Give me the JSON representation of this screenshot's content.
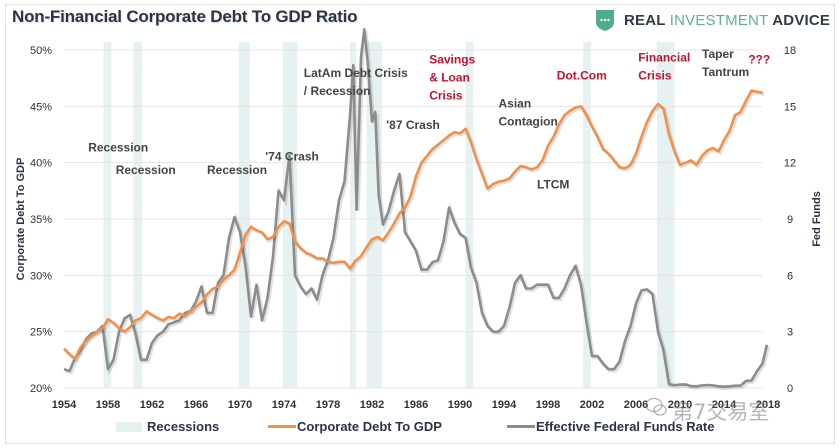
{
  "header": {
    "title": "Non-Financial Corporate Debt To GDP Ratio",
    "brand": {
      "part1": "REAL",
      "part2": "INVESTMENT",
      "part3": "ADVICE",
      "accent": "#57b391",
      "shield_color": "#4fae8a"
    }
  },
  "watermark": {
    "text": "第7交易室"
  },
  "chart_data": {
    "type": "line",
    "title": "Non-Financial Corporate Debt To GDP Ratio",
    "xlabel": "",
    "ylabel": "Corporate Debt To GDP",
    "y2label": "Fed Funds",
    "xlim": [
      1954,
      2017.5
    ],
    "ylim": [
      20,
      50
    ],
    "y2lim": [
      0,
      18
    ],
    "x_ticks": [
      "1954",
      "1958",
      "1962",
      "1966",
      "1970",
      "1974",
      "1978",
      "1982",
      "1986",
      "1990",
      "1994",
      "1998",
      "2002",
      "2006",
      "2010",
      "2014",
      "2018"
    ],
    "y_ticks": [
      "20%",
      "25%",
      "30%",
      "35%",
      "40%",
      "45%",
      "50%"
    ],
    "y2_ticks": [
      "0",
      "3",
      "6",
      "9",
      "12",
      "15",
      "18"
    ],
    "grid": true,
    "legend": {
      "position": "bottom",
      "entries": [
        "Recessions",
        "Corporate Debt To GDP",
        "Effective Federal Funds Rate"
      ]
    },
    "colors": {
      "debt": "#f0914a",
      "fed": "#8c8c8c",
      "recession": "#e3f1ef",
      "grid": "#e4e4e4",
      "annotation": "#444444",
      "annotation_red": "#c8102e"
    },
    "recessions": [
      [
        1957.6,
        1958.3
      ],
      [
        1960.3,
        1961.1
      ],
      [
        1969.9,
        1970.9
      ],
      [
        1973.9,
        1975.2
      ],
      [
        1980.0,
        1980.5
      ],
      [
        1981.5,
        1982.9
      ],
      [
        1990.5,
        1991.2
      ],
      [
        2001.2,
        2001.9
      ],
      [
        2007.9,
        2009.5
      ]
    ],
    "series": [
      {
        "name": "Corporate Debt To GDP",
        "axis": "left",
        "points": [
          [
            1954,
            23.5
          ],
          [
            1954.5,
            23.0
          ],
          [
            1955,
            22.6
          ],
          [
            1955.5,
            23.6
          ],
          [
            1956,
            24.2
          ],
          [
            1956.5,
            24.6
          ],
          [
            1957,
            25.0
          ],
          [
            1957.5,
            25.3
          ],
          [
            1958,
            26.1
          ],
          [
            1958.5,
            25.8
          ],
          [
            1959,
            25.3
          ],
          [
            1959.5,
            25.0
          ],
          [
            1960,
            25.4
          ],
          [
            1960.5,
            26.0
          ],
          [
            1961,
            26.2
          ],
          [
            1961.5,
            26.8
          ],
          [
            1962,
            26.5
          ],
          [
            1962.5,
            26.2
          ],
          [
            1963,
            26.0
          ],
          [
            1963.5,
            26.3
          ],
          [
            1964,
            26.2
          ],
          [
            1964.5,
            26.6
          ],
          [
            1965,
            26.4
          ],
          [
            1965.5,
            26.8
          ],
          [
            1966,
            27.2
          ],
          [
            1966.5,
            27.6
          ],
          [
            1967,
            28.3
          ],
          [
            1967.5,
            28.8
          ],
          [
            1968,
            29.0
          ],
          [
            1968.5,
            29.6
          ],
          [
            1969,
            30.0
          ],
          [
            1969.5,
            30.5
          ],
          [
            1970,
            32.0
          ],
          [
            1970.5,
            33.6
          ],
          [
            1971,
            34.3
          ],
          [
            1971.5,
            34.0
          ],
          [
            1972,
            33.8
          ],
          [
            1972.5,
            33.2
          ],
          [
            1973,
            33.4
          ],
          [
            1973.5,
            34.3
          ],
          [
            1974,
            34.8
          ],
          [
            1974.5,
            34.6
          ],
          [
            1975,
            33.0
          ],
          [
            1975.5,
            32.4
          ],
          [
            1976,
            32.0
          ],
          [
            1976.5,
            31.8
          ],
          [
            1977,
            31.5
          ],
          [
            1977.5,
            31.5
          ],
          [
            1978,
            31.2
          ],
          [
            1978.5,
            31.1
          ],
          [
            1979,
            31.2
          ],
          [
            1979.5,
            31.2
          ],
          [
            1980,
            30.6
          ],
          [
            1980.5,
            31.3
          ],
          [
            1981,
            31.7
          ],
          [
            1981.5,
            32.5
          ],
          [
            1982,
            33.2
          ],
          [
            1982.5,
            33.4
          ],
          [
            1983,
            33.1
          ],
          [
            1983.5,
            33.8
          ],
          [
            1984,
            34.6
          ],
          [
            1984.5,
            35.5
          ],
          [
            1985,
            36.0
          ],
          [
            1985.5,
            37.0
          ],
          [
            1986,
            38.8
          ],
          [
            1986.5,
            40.0
          ],
          [
            1987,
            40.6
          ],
          [
            1987.5,
            41.2
          ],
          [
            1988,
            41.6
          ],
          [
            1988.5,
            42.0
          ],
          [
            1989,
            42.4
          ],
          [
            1989.5,
            42.7
          ],
          [
            1990,
            42.6
          ],
          [
            1990.5,
            43.0
          ],
          [
            1991,
            41.8
          ],
          [
            1991.5,
            40.3
          ],
          [
            1992,
            39.0
          ],
          [
            1992.5,
            37.7
          ],
          [
            1993,
            38.1
          ],
          [
            1993.5,
            38.3
          ],
          [
            1994,
            38.4
          ],
          [
            1994.5,
            38.6
          ],
          [
            1995,
            39.2
          ],
          [
            1995.5,
            39.7
          ],
          [
            1996,
            39.6
          ],
          [
            1996.5,
            39.4
          ],
          [
            1997,
            39.6
          ],
          [
            1997.5,
            40.2
          ],
          [
            1998,
            41.5
          ],
          [
            1998.5,
            42.3
          ],
          [
            1999,
            43.4
          ],
          [
            1999.5,
            44.2
          ],
          [
            2000,
            44.6
          ],
          [
            2000.5,
            44.9
          ],
          [
            2001,
            45.0
          ],
          [
            2001.5,
            44.2
          ],
          [
            2002,
            43.2
          ],
          [
            2002.5,
            42.3
          ],
          [
            2003,
            41.2
          ],
          [
            2003.5,
            40.8
          ],
          [
            2004,
            40.2
          ],
          [
            2004.5,
            39.6
          ],
          [
            2005,
            39.5
          ],
          [
            2005.5,
            39.8
          ],
          [
            2006,
            40.8
          ],
          [
            2006.5,
            42.3
          ],
          [
            2007,
            43.6
          ],
          [
            2007.5,
            44.6
          ],
          [
            2008,
            45.2
          ],
          [
            2008.5,
            44.8
          ],
          [
            2009,
            42.5
          ],
          [
            2009.5,
            41.0
          ],
          [
            2010,
            39.8
          ],
          [
            2010.5,
            40.0
          ],
          [
            2011,
            40.2
          ],
          [
            2011.5,
            39.8
          ],
          [
            2012,
            40.6
          ],
          [
            2012.5,
            41.1
          ],
          [
            2013,
            41.3
          ],
          [
            2013.5,
            41.0
          ],
          [
            2014,
            42.0
          ],
          [
            2014.5,
            42.8
          ],
          [
            2015,
            44.2
          ],
          [
            2015.5,
            44.5
          ],
          [
            2016,
            45.5
          ],
          [
            2016.5,
            46.4
          ],
          [
            2017,
            46.3
          ],
          [
            2017.5,
            46.2
          ]
        ]
      },
      {
        "name": "Effective Federal Funds Rate",
        "axis": "right",
        "points": [
          [
            1954,
            1.0
          ],
          [
            1954.5,
            0.9
          ],
          [
            1955,
            1.6
          ],
          [
            1955.5,
            2.0
          ],
          [
            1956,
            2.6
          ],
          [
            1956.5,
            2.9
          ],
          [
            1957,
            3.0
          ],
          [
            1957.5,
            3.3
          ],
          [
            1958,
            1.0
          ],
          [
            1958.5,
            1.5
          ],
          [
            1959,
            3.0
          ],
          [
            1959.5,
            3.7
          ],
          [
            1960,
            3.9
          ],
          [
            1960.5,
            2.9
          ],
          [
            1961,
            1.5
          ],
          [
            1961.5,
            1.5
          ],
          [
            1962,
            2.4
          ],
          [
            1962.5,
            2.8
          ],
          [
            1963,
            3.0
          ],
          [
            1963.5,
            3.4
          ],
          [
            1964,
            3.5
          ],
          [
            1964.5,
            3.6
          ],
          [
            1965,
            4.0
          ],
          [
            1965.5,
            4.1
          ],
          [
            1966,
            4.6
          ],
          [
            1966.5,
            5.4
          ],
          [
            1967,
            4.0
          ],
          [
            1967.5,
            4.0
          ],
          [
            1968,
            5.6
          ],
          [
            1968.5,
            6.0
          ],
          [
            1969,
            8.0
          ],
          [
            1969.5,
            9.1
          ],
          [
            1970,
            8.3
          ],
          [
            1970.5,
            6.5
          ],
          [
            1971,
            3.8
          ],
          [
            1971.5,
            5.5
          ],
          [
            1972,
            3.6
          ],
          [
            1972.5,
            4.8
          ],
          [
            1973,
            7.0
          ],
          [
            1973.5,
            10.5
          ],
          [
            1974,
            10.0
          ],
          [
            1974.5,
            12.4
          ],
          [
            1975,
            6.0
          ],
          [
            1975.5,
            5.4
          ],
          [
            1976,
            5.0
          ],
          [
            1976.5,
            5.3
          ],
          [
            1977,
            4.7
          ],
          [
            1977.5,
            6.0
          ],
          [
            1978,
            6.8
          ],
          [
            1978.5,
            8.0
          ],
          [
            1979,
            10.0
          ],
          [
            1979.5,
            11.0
          ],
          [
            1980,
            14.5
          ],
          [
            1980.3,
            17.2
          ],
          [
            1980.6,
            9.5
          ],
          [
            1981,
            17.6
          ],
          [
            1981.3,
            19.1
          ],
          [
            1981.6,
            17.4
          ],
          [
            1982,
            14.2
          ],
          [
            1982.3,
            14.7
          ],
          [
            1982.6,
            10.3
          ],
          [
            1983,
            8.7
          ],
          [
            1983.5,
            9.4
          ],
          [
            1984,
            10.5
          ],
          [
            1984.5,
            11.4
          ],
          [
            1985,
            8.3
          ],
          [
            1985.5,
            7.8
          ],
          [
            1986,
            7.3
          ],
          [
            1986.5,
            6.3
          ],
          [
            1987,
            6.3
          ],
          [
            1987.5,
            6.7
          ],
          [
            1988,
            6.8
          ],
          [
            1988.5,
            7.8
          ],
          [
            1989,
            9.6
          ],
          [
            1989.5,
            8.8
          ],
          [
            1990,
            8.2
          ],
          [
            1990.5,
            8.0
          ],
          [
            1991,
            6.4
          ],
          [
            1991.5,
            5.6
          ],
          [
            1992,
            4.0
          ],
          [
            1992.5,
            3.3
          ],
          [
            1993,
            3.0
          ],
          [
            1993.5,
            3.0
          ],
          [
            1994,
            3.3
          ],
          [
            1994.5,
            4.3
          ],
          [
            1995,
            5.6
          ],
          [
            1995.5,
            6.0
          ],
          [
            1996,
            5.3
          ],
          [
            1996.5,
            5.3
          ],
          [
            1997,
            5.5
          ],
          [
            1997.5,
            5.5
          ],
          [
            1998,
            5.5
          ],
          [
            1998.5,
            4.8
          ],
          [
            1999,
            4.8
          ],
          [
            1999.5,
            5.3
          ],
          [
            2000,
            6.0
          ],
          [
            2000.5,
            6.5
          ],
          [
            2001,
            5.5
          ],
          [
            2001.5,
            3.5
          ],
          [
            2002,
            1.7
          ],
          [
            2002.5,
            1.7
          ],
          [
            2003,
            1.3
          ],
          [
            2003.5,
            1.0
          ],
          [
            2004,
            1.0
          ],
          [
            2004.5,
            1.4
          ],
          [
            2005,
            2.5
          ],
          [
            2005.5,
            3.3
          ],
          [
            2006,
            4.5
          ],
          [
            2006.5,
            5.2
          ],
          [
            2007,
            5.25
          ],
          [
            2007.5,
            5.0
          ],
          [
            2008,
            3.0
          ],
          [
            2008.5,
            2.0
          ],
          [
            2009,
            0.2
          ],
          [
            2009.5,
            0.15
          ],
          [
            2010,
            0.18
          ],
          [
            2010.5,
            0.19
          ],
          [
            2011,
            0.1
          ],
          [
            2011.5,
            0.09
          ],
          [
            2012,
            0.14
          ],
          [
            2012.5,
            0.16
          ],
          [
            2013,
            0.14
          ],
          [
            2013.5,
            0.09
          ],
          [
            2014,
            0.07
          ],
          [
            2014.5,
            0.09
          ],
          [
            2015,
            0.12
          ],
          [
            2015.5,
            0.13
          ],
          [
            2016,
            0.38
          ],
          [
            2016.5,
            0.4
          ],
          [
            2017,
            0.9
          ],
          [
            2017.5,
            1.3
          ],
          [
            2017.9,
            2.3
          ]
        ]
      }
    ],
    "annotations": [
      {
        "text": [
          "Recession"
        ],
        "x": 1956.2,
        "y": 41.0,
        "style": "dark"
      },
      {
        "text": [
          "Recession"
        ],
        "x": 1958.7,
        "y": 39.0,
        "style": "dark"
      },
      {
        "text": [
          "Recession"
        ],
        "x": 1967.0,
        "y": 39.0,
        "style": "dark"
      },
      {
        "text": [
          "'74 Crash"
        ],
        "x": 1972.3,
        "y": 40.2,
        "style": "dark"
      },
      {
        "text": [
          "LatAm Debt Crisis",
          "/ Recession"
        ],
        "x": 1975.8,
        "y": 47.6,
        "style": "dark"
      },
      {
        "text": [
          "'87 Crash"
        ],
        "x": 1983.3,
        "y": 43.0,
        "style": "dark"
      },
      {
        "text": [
          "Savings",
          "& Loan",
          "Crisis"
        ],
        "x": 1987.2,
        "y": 48.8,
        "style": "red"
      },
      {
        "text": [
          "Asian",
          "Contagion"
        ],
        "x": 1993.5,
        "y": 44.9,
        "style": "dark"
      },
      {
        "text": [
          "LTCM"
        ],
        "x": 1997.0,
        "y": 37.7,
        "style": "dark"
      },
      {
        "text": [
          "Dot.Com"
        ],
        "x": 1998.8,
        "y": 47.4,
        "style": "red"
      },
      {
        "text": [
          "Financial",
          "Crisis"
        ],
        "x": 2006.2,
        "y": 49.0,
        "style": "red"
      },
      {
        "text": [
          "Taper",
          "Tantrum"
        ],
        "x": 2012.0,
        "y": 49.3,
        "style": "dark"
      },
      {
        "text": [
          "???"
        ],
        "x": 2016.2,
        "y": 48.8,
        "style": "red"
      }
    ]
  }
}
